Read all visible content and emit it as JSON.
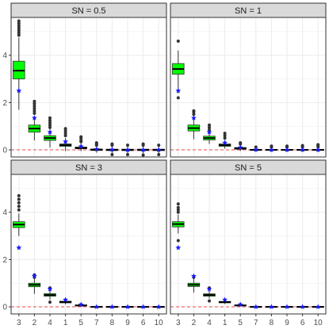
{
  "colors": {
    "box_fill": "#00ff00",
    "box_border": "#333333",
    "outlier": "#333333",
    "mean_marker": "#1a1aff",
    "reference_line": "#e8474e",
    "grid": "#ebebeb",
    "strip_fill": "#d9d9d9",
    "panel_border": "#333333"
  },
  "chart_data": {
    "type": "boxplot",
    "layout": "facet 2x2",
    "categories": [
      "3",
      "2",
      "4",
      "1",
      "5",
      "7",
      "8",
      "9",
      "6",
      "10"
    ],
    "y_ticks": [
      0,
      2,
      4
    ],
    "ylim": [
      -0.3,
      5.6
    ],
    "reference_line": {
      "y": 0,
      "style": "dashed"
    },
    "grid": true,
    "mean_marker": "star",
    "panels": [
      {
        "title": "SN =  0.5",
        "boxes": [
          {
            "lower": 1.7,
            "q1": 3.0,
            "median": 3.35,
            "q3": 3.75,
            "upper": 4.75,
            "mean": 2.5,
            "outliers": [
              4.85,
              4.95,
              5.05,
              5.15,
              5.25,
              5.35,
              5.45
            ]
          },
          {
            "lower": 0.4,
            "q1": 0.75,
            "median": 0.9,
            "q3": 1.05,
            "upper": 1.45,
            "mean": 1.35,
            "outliers": [
              1.55,
              1.65,
              1.75,
              1.85,
              1.95,
              2.05
            ]
          },
          {
            "lower": 0.1,
            "q1": 0.4,
            "median": 0.5,
            "q3": 0.6,
            "upper": 0.9,
            "mean": 0.75,
            "outliers": [
              0.95,
              1.05,
              1.15,
              1.25,
              1.35
            ]
          },
          {
            "lower": -0.05,
            "q1": 0.15,
            "median": 0.2,
            "q3": 0.25,
            "upper": 0.5,
            "mean": 0.35,
            "outliers": [
              0.6,
              0.7,
              0.8,
              0.9
            ]
          },
          {
            "lower": -0.05,
            "q1": 0.05,
            "median": 0.08,
            "q3": 0.12,
            "upper": 0.3,
            "mean": 0.15,
            "outliers": [
              0.35,
              0.4,
              0.5,
              0.55
            ]
          },
          {
            "lower": -0.12,
            "q1": -0.02,
            "median": 0.0,
            "q3": 0.04,
            "upper": 0.15,
            "mean": 0.03,
            "outliers": [
              0.2,
              0.25,
              0.3
            ]
          },
          {
            "lower": -0.15,
            "q1": -0.03,
            "median": 0.0,
            "q3": 0.03,
            "upper": 0.15,
            "mean": 0.01,
            "outliers": [
              -0.2,
              0.2,
              0.25
            ]
          },
          {
            "lower": -0.15,
            "q1": -0.03,
            "median": 0.0,
            "q3": 0.03,
            "upper": 0.15,
            "mean": 0.0,
            "outliers": [
              -0.2,
              0.2
            ]
          },
          {
            "lower": -0.15,
            "q1": -0.03,
            "median": 0.0,
            "q3": 0.03,
            "upper": 0.15,
            "mean": 0.0,
            "outliers": [
              -0.22,
              0.2,
              0.25
            ]
          },
          {
            "lower": -0.15,
            "q1": -0.03,
            "median": 0.0,
            "q3": 0.03,
            "upper": 0.15,
            "mean": 0.0,
            "outliers": [
              -0.2,
              0.2
            ]
          }
        ]
      },
      {
        "title": "SN = 1",
        "boxes": [
          {
            "lower": 2.4,
            "q1": 3.2,
            "median": 3.42,
            "q3": 3.65,
            "upper": 4.2,
            "mean": 2.5,
            "outliers": [
              2.2,
              4.6
            ]
          },
          {
            "lower": 0.45,
            "q1": 0.8,
            "median": 0.92,
            "q3": 1.05,
            "upper": 1.4,
            "mean": 1.35,
            "outliers": [
              1.5,
              1.6,
              1.65
            ]
          },
          {
            "lower": 0.25,
            "q1": 0.42,
            "median": 0.5,
            "q3": 0.58,
            "upper": 0.8,
            "mean": 0.75,
            "outliers": [
              0.85,
              0.95,
              1.05
            ]
          },
          {
            "lower": 0.05,
            "q1": 0.15,
            "median": 0.2,
            "q3": 0.25,
            "upper": 0.42,
            "mean": 0.3,
            "outliers": [
              0.5,
              0.6,
              0.7
            ]
          },
          {
            "lower": -0.05,
            "q1": 0.03,
            "median": 0.06,
            "q3": 0.1,
            "upper": 0.2,
            "mean": 0.1,
            "outliers": [
              0.25,
              0.3
            ]
          },
          {
            "lower": -0.08,
            "q1": -0.02,
            "median": 0.0,
            "q3": 0.02,
            "upper": 0.08,
            "mean": 0.01,
            "outliers": [
              0.12
            ]
          },
          {
            "lower": -0.08,
            "q1": -0.02,
            "median": 0.0,
            "q3": 0.02,
            "upper": 0.08,
            "mean": 0.0,
            "outliers": [
              0.12,
              0.16
            ]
          },
          {
            "lower": -0.08,
            "q1": -0.02,
            "median": 0.0,
            "q3": 0.02,
            "upper": 0.08,
            "mean": 0.0,
            "outliers": [
              0.12,
              0.16
            ]
          },
          {
            "lower": -0.08,
            "q1": -0.02,
            "median": 0.0,
            "q3": 0.02,
            "upper": 0.08,
            "mean": 0.0,
            "outliers": [
              0.12,
              0.18
            ]
          },
          {
            "lower": -0.08,
            "q1": -0.02,
            "median": 0.0,
            "q3": 0.02,
            "upper": 0.08,
            "mean": 0.0,
            "outliers": [
              0.12,
              0.18,
              0.22
            ]
          }
        ]
      },
      {
        "title": "SN = 3",
        "boxes": [
          {
            "lower": 3.0,
            "q1": 3.35,
            "median": 3.48,
            "q3": 3.6,
            "upper": 3.95,
            "mean": 2.5,
            "outliers": [
              4.1,
              4.25,
              4.4,
              4.55,
              4.7
            ]
          },
          {
            "lower": 0.55,
            "q1": 0.85,
            "median": 0.93,
            "q3": 1.0,
            "upper": 1.2,
            "mean": 1.3,
            "outliers": [
              1.25,
              1.35
            ]
          },
          {
            "lower": 0.3,
            "q1": 0.45,
            "median": 0.5,
            "q3": 0.56,
            "upper": 0.7,
            "mean": 0.75,
            "outliers": [
              0.2,
              0.8
            ]
          },
          {
            "lower": 0.1,
            "q1": 0.17,
            "median": 0.2,
            "q3": 0.24,
            "upper": 0.32,
            "mean": 0.3,
            "outliers": []
          },
          {
            "lower": 0.0,
            "q1": 0.04,
            "median": 0.06,
            "q3": 0.08,
            "upper": 0.12,
            "mean": 0.1,
            "outliers": []
          },
          {
            "lower": -0.03,
            "q1": -0.01,
            "median": 0.0,
            "q3": 0.01,
            "upper": 0.03,
            "mean": 0.0,
            "outliers": []
          },
          {
            "lower": -0.03,
            "q1": -0.01,
            "median": 0.0,
            "q3": 0.01,
            "upper": 0.03,
            "mean": 0.0,
            "outliers": []
          },
          {
            "lower": -0.03,
            "q1": -0.01,
            "median": 0.0,
            "q3": 0.01,
            "upper": 0.03,
            "mean": 0.0,
            "outliers": []
          },
          {
            "lower": -0.03,
            "q1": -0.01,
            "median": 0.0,
            "q3": 0.01,
            "upper": 0.03,
            "mean": 0.0,
            "outliers": []
          },
          {
            "lower": -0.03,
            "q1": -0.01,
            "median": 0.0,
            "q3": 0.01,
            "upper": 0.03,
            "mean": 0.0,
            "outliers": []
          }
        ]
      },
      {
        "title": "SN = 5",
        "boxes": [
          {
            "lower": 3.1,
            "q1": 3.38,
            "median": 3.5,
            "q3": 3.6,
            "upper": 3.9,
            "mean": 2.5,
            "outliers": [
              2.8,
              4.0,
              4.1,
              4.2,
              4.35
            ]
          },
          {
            "lower": 0.6,
            "q1": 0.86,
            "median": 0.93,
            "q3": 1.0,
            "upper": 1.2,
            "mean": 1.3,
            "outliers": [
              1.25
            ]
          },
          {
            "lower": 0.35,
            "q1": 0.45,
            "median": 0.5,
            "q3": 0.55,
            "upper": 0.68,
            "mean": 0.75,
            "outliers": [
              0.25,
              0.8
            ]
          },
          {
            "lower": 0.12,
            "q1": 0.17,
            "median": 0.2,
            "q3": 0.23,
            "upper": 0.3,
            "mean": 0.3,
            "outliers": []
          },
          {
            "lower": 0.02,
            "q1": 0.05,
            "median": 0.06,
            "q3": 0.08,
            "upper": 0.11,
            "mean": 0.1,
            "outliers": []
          },
          {
            "lower": -0.02,
            "q1": -0.01,
            "median": 0.0,
            "q3": 0.01,
            "upper": 0.02,
            "mean": 0.0,
            "outliers": []
          },
          {
            "lower": -0.02,
            "q1": -0.01,
            "median": 0.0,
            "q3": 0.01,
            "upper": 0.02,
            "mean": 0.0,
            "outliers": []
          },
          {
            "lower": -0.02,
            "q1": -0.01,
            "median": 0.0,
            "q3": 0.01,
            "upper": 0.02,
            "mean": 0.0,
            "outliers": []
          },
          {
            "lower": -0.02,
            "q1": -0.01,
            "median": 0.0,
            "q3": 0.01,
            "upper": 0.02,
            "mean": 0.0,
            "outliers": []
          },
          {
            "lower": -0.02,
            "q1": -0.01,
            "median": 0.0,
            "q3": 0.01,
            "upper": 0.02,
            "mean": 0.0,
            "outliers": []
          }
        ]
      }
    ]
  }
}
